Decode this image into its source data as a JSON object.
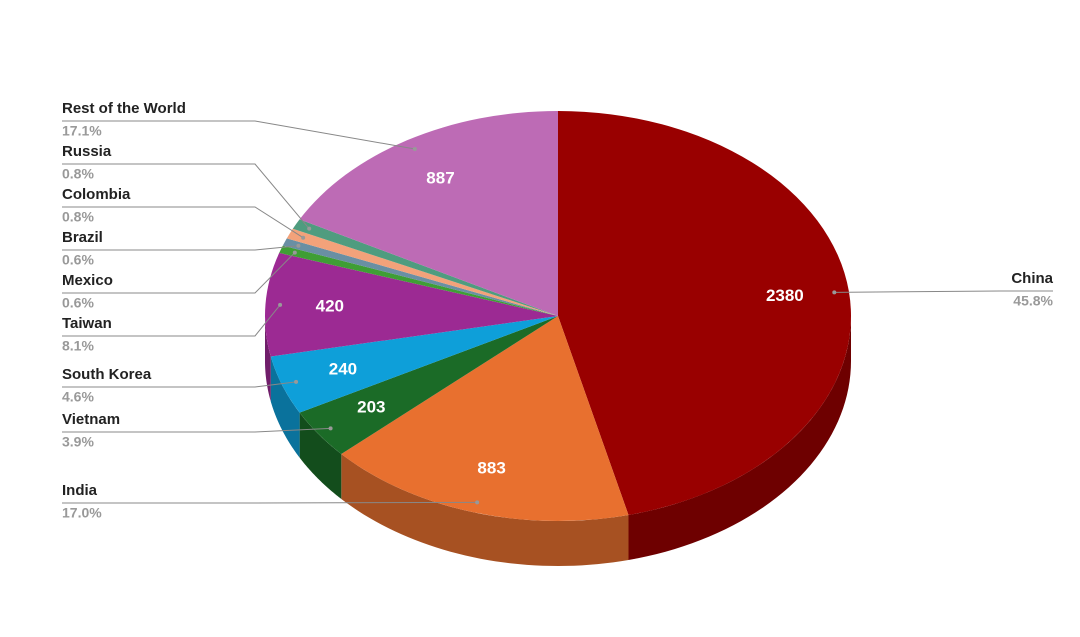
{
  "chart_data": {
    "type": "pie3d",
    "categories": [
      "China",
      "India",
      "Vietnam",
      "South Korea",
      "Taiwan",
      "Mexico",
      "Brazil",
      "Colombia",
      "Russia",
      "Rest of the World"
    ],
    "values": [
      2380,
      883,
      203,
      240,
      420,
      31,
      31,
      42,
      42,
      887
    ],
    "percent_labels": [
      "45.8%",
      "17.0%",
      "3.9%",
      "4.6%",
      "8.1%",
      "0.6%",
      "0.6%",
      "0.8%",
      "0.8%",
      "17.1%"
    ],
    "colors": [
      "#990000",
      "#e8702f",
      "#1b6b27",
      "#0e9fd9",
      "#9c2a93",
      "#3f9e35",
      "#6a8fa3",
      "#f3a27a",
      "#4f9c7f",
      "#bd6bb5"
    ]
  }
}
